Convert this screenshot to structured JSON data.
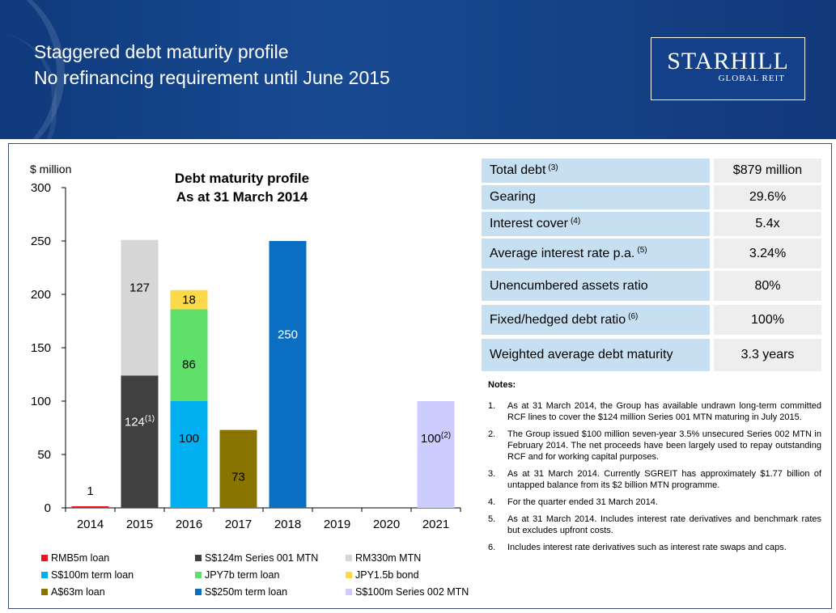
{
  "header": {
    "title_line1": "Staggered debt maturity profile",
    "title_line2": "No refinancing requirement until June 2015",
    "logo_main": "STARHILL",
    "logo_sub": "GLOBAL REIT"
  },
  "chart_data": {
    "type": "bar",
    "title": "Debt maturity profile",
    "subtitle": "As at 31 March 2014",
    "ylabel": "$ million",
    "ylim": [
      0,
      300
    ],
    "yticks": [
      0,
      50,
      100,
      150,
      200,
      250,
      300
    ],
    "categories": [
      "2014",
      "2015",
      "2016",
      "2017",
      "2018",
      "2019",
      "2020",
      "2021"
    ],
    "stacked": true,
    "series": [
      {
        "name": "RMB5m loan",
        "color": "#e8141c",
        "values": [
          1,
          0,
          0,
          0,
          0,
          0,
          0,
          0
        ]
      },
      {
        "name": "S$124m Series 001 MTN",
        "color": "#404040",
        "values": [
          0,
          124,
          0,
          0,
          0,
          0,
          0,
          0
        ]
      },
      {
        "name": "RM330m MTN",
        "color": "#d6d6d6",
        "values": [
          0,
          127,
          0,
          0,
          0,
          0,
          0,
          0
        ]
      },
      {
        "name": "S$100m term loan",
        "color": "#00b0f0",
        "values": [
          0,
          0,
          100,
          0,
          0,
          0,
          0,
          0
        ]
      },
      {
        "name": "JPY7b term loan",
        "color": "#5fe06a",
        "values": [
          0,
          0,
          86,
          0,
          0,
          0,
          0,
          0
        ]
      },
      {
        "name": "JPY1.5b bond",
        "color": "#fdd94a",
        "values": [
          0,
          0,
          18,
          0,
          0,
          0,
          0,
          0
        ]
      },
      {
        "name": "A$63m loan",
        "color": "#8a7400",
        "values": [
          0,
          0,
          0,
          73,
          0,
          0,
          0,
          0
        ]
      },
      {
        "name": "S$250m term loan",
        "color": "#0a6fc2",
        "values": [
          0,
          0,
          0,
          0,
          250,
          0,
          0,
          0
        ]
      },
      {
        "name": "S$100m Series 002 MTN",
        "color": "#ccccff",
        "values": [
          0,
          0,
          0,
          0,
          0,
          0,
          0,
          100
        ]
      }
    ],
    "data_labels": [
      {
        "category": "2014",
        "series": "RMB5m loan",
        "text": "1",
        "sup": ""
      },
      {
        "category": "2015",
        "series": "S$124m Series 001 MTN",
        "text": "124",
        "sup": "(1)"
      },
      {
        "category": "2015",
        "series": "RM330m MTN",
        "text": "127",
        "sup": ""
      },
      {
        "category": "2016",
        "series": "S$100m term loan",
        "text": "100",
        "sup": ""
      },
      {
        "category": "2016",
        "series": "JPY7b term loan",
        "text": "86",
        "sup": ""
      },
      {
        "category": "2016",
        "series": "JPY1.5b bond",
        "text": "18",
        "sup": ""
      },
      {
        "category": "2017",
        "series": "A$63m loan",
        "text": "73",
        "sup": ""
      },
      {
        "category": "2018",
        "series": "S$250m term loan",
        "text": "250",
        "sup": ""
      },
      {
        "category": "2021",
        "series": "S$100m Series 002 MTN",
        "text": "100",
        "sup": "(2)"
      }
    ]
  },
  "stats": [
    {
      "label": "Total debt",
      "sup": "(3)",
      "value": "$879 million"
    },
    {
      "label": "Gearing",
      "sup": "",
      "value": "29.6%"
    },
    {
      "label": "Interest cover",
      "sup": "(4)",
      "value": "5.4x"
    },
    {
      "label": "Average interest rate p.a.",
      "sup": "(5)",
      "value": "3.24%"
    },
    {
      "label": "Unencumbered assets ratio",
      "sup": "",
      "value": "80%"
    },
    {
      "label": "Fixed/hedged debt ratio",
      "sup": "(6)",
      "value": "100%"
    },
    {
      "label": "Weighted average debt maturity",
      "sup": "",
      "value": "3.3 years"
    }
  ],
  "notes": {
    "title": "Notes:",
    "items": [
      {
        "num": "1.",
        "text": "As at 31 March 2014, the Group has available undrawn long-term committed RCF lines to cover the $124 million Series 001 MTN maturing in July 2015."
      },
      {
        "num": "2.",
        "text": "The Group issued $100 million seven-year 3.5% unsecured Series 002 MTN in February 2014. The net proceeds have been largely used to repay outstanding RCF and for working capital purposes."
      },
      {
        "num": "3.",
        "text": "As at 31 March 2014. Currently SGREIT has approximately $1.77 billion of untapped balance from its $2 billion MTN programme."
      },
      {
        "num": "4.",
        "text": "For the quarter ended 31 March 2014."
      },
      {
        "num": "5.",
        "text": "As at 31 March 2014. Includes interest rate derivatives and benchmark rates but excludes upfront costs."
      },
      {
        "num": "6.",
        "text": "Includes interest rate derivatives such as interest rate swaps and caps."
      }
    ]
  }
}
